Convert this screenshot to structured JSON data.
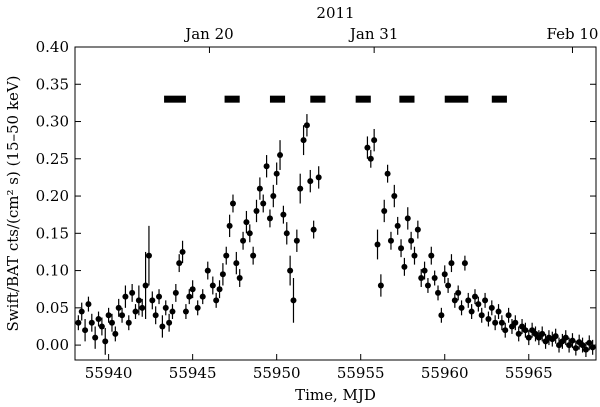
{
  "chart_data": {
    "type": "scatter",
    "xlabel": "Time, MJD",
    "ylabel": "Swift/BAT cts/(cm² s) (15–50 keV)",
    "xlim": [
      55938,
      55969
    ],
    "ylim": [
      -0.02,
      0.4
    ],
    "xticks": [
      55940,
      55945,
      55950,
      55955,
      55960,
      55965
    ],
    "yticks": [
      0.0,
      0.05,
      0.1,
      0.15,
      0.2,
      0.25,
      0.3,
      0.35,
      0.4
    ],
    "top_axis": {
      "title": "2011",
      "ticks": [
        {
          "label": "Jan 20",
          "x": 55946.0
        },
        {
          "label": "Jan 31",
          "x": 55955.8
        },
        {
          "label": "Feb 10",
          "x": 55967.6
        }
      ]
    },
    "bars": {
      "y": 0.33,
      "segments": [
        [
          55943.3,
          55944.6
        ],
        [
          55946.9,
          55947.8
        ],
        [
          55949.6,
          55950.5
        ],
        [
          55952.0,
          55952.9
        ],
        [
          55954.7,
          55955.6
        ],
        [
          55957.3,
          55958.2
        ],
        [
          55960.0,
          55961.4
        ],
        [
          55962.8,
          55963.7
        ]
      ]
    },
    "points": [
      [
        55938.2,
        0.03,
        0.01
      ],
      [
        55938.4,
        0.045,
        0.012
      ],
      [
        55938.6,
        0.02,
        0.015
      ],
      [
        55938.8,
        0.055,
        0.01
      ],
      [
        55939.0,
        0.03,
        0.012
      ],
      [
        55939.2,
        0.01,
        0.015
      ],
      [
        55939.4,
        0.035,
        0.01
      ],
      [
        55939.6,
        0.025,
        0.012
      ],
      [
        55939.8,
        0.005,
        0.018
      ],
      [
        55940.0,
        0.04,
        0.01
      ],
      [
        55940.2,
        0.03,
        0.012
      ],
      [
        55940.4,
        0.015,
        0.01
      ],
      [
        55940.6,
        0.05,
        0.012
      ],
      [
        55940.8,
        0.04,
        0.01
      ],
      [
        55941.0,
        0.065,
        0.015
      ],
      [
        55941.2,
        0.03,
        0.01
      ],
      [
        55941.4,
        0.07,
        0.012
      ],
      [
        55941.6,
        0.045,
        0.01
      ],
      [
        55941.8,
        0.06,
        0.02
      ],
      [
        55942.0,
        0.05,
        0.012
      ],
      [
        55942.2,
        0.08,
        0.045
      ],
      [
        55942.4,
        0.12,
        0.04
      ],
      [
        55942.6,
        0.06,
        0.012
      ],
      [
        55942.8,
        0.04,
        0.012
      ],
      [
        55943.0,
        0.065,
        0.01
      ],
      [
        55943.2,
        0.025,
        0.015
      ],
      [
        55943.4,
        0.05,
        0.01
      ],
      [
        55943.6,
        0.03,
        0.012
      ],
      [
        55943.8,
        0.045,
        0.01
      ],
      [
        55944.0,
        0.07,
        0.012
      ],
      [
        55944.2,
        0.11,
        0.012
      ],
      [
        55944.4,
        0.125,
        0.015
      ],
      [
        55944.6,
        0.045,
        0.01
      ],
      [
        55944.8,
        0.065,
        0.01
      ],
      [
        55945.0,
        0.075,
        0.012
      ],
      [
        55945.3,
        0.05,
        0.01
      ],
      [
        55945.6,
        0.065,
        0.01
      ],
      [
        55945.9,
        0.1,
        0.012
      ],
      [
        55946.2,
        0.08,
        0.012
      ],
      [
        55946.4,
        0.06,
        0.01
      ],
      [
        55946.6,
        0.075,
        0.012
      ],
      [
        55946.8,
        0.095,
        0.015
      ],
      [
        55947.0,
        0.12,
        0.012
      ],
      [
        55947.2,
        0.16,
        0.015
      ],
      [
        55947.4,
        0.19,
        0.012
      ],
      [
        55947.6,
        0.11,
        0.015
      ],
      [
        55947.8,
        0.09,
        0.012
      ],
      [
        55948.0,
        0.14,
        0.012
      ],
      [
        55948.2,
        0.165,
        0.015
      ],
      [
        55948.4,
        0.15,
        0.012
      ],
      [
        55948.6,
        0.12,
        0.012
      ],
      [
        55948.8,
        0.18,
        0.015
      ],
      [
        55949.0,
        0.21,
        0.015
      ],
      [
        55949.2,
        0.19,
        0.012
      ],
      [
        55949.4,
        0.24,
        0.015
      ],
      [
        55949.6,
        0.17,
        0.012
      ],
      [
        55949.8,
        0.2,
        0.015
      ],
      [
        55950.0,
        0.23,
        0.015
      ],
      [
        55950.2,
        0.255,
        0.02
      ],
      [
        55950.4,
        0.175,
        0.012
      ],
      [
        55950.6,
        0.15,
        0.015
      ],
      [
        55950.8,
        0.1,
        0.02
      ],
      [
        55951.0,
        0.06,
        0.03
      ],
      [
        55951.2,
        0.14,
        0.015
      ],
      [
        55951.4,
        0.21,
        0.02
      ],
      [
        55951.6,
        0.275,
        0.02
      ],
      [
        55951.8,
        0.295,
        0.015
      ],
      [
        55952.0,
        0.22,
        0.015
      ],
      [
        55952.2,
        0.155,
        0.012
      ],
      [
        55952.5,
        0.225,
        0.015
      ],
      [
        55955.4,
        0.265,
        0.015
      ],
      [
        55955.6,
        0.25,
        0.012
      ],
      [
        55955.8,
        0.275,
        0.015
      ],
      [
        55956.0,
        0.135,
        0.02
      ],
      [
        55956.2,
        0.08,
        0.015
      ],
      [
        55956.4,
        0.18,
        0.015
      ],
      [
        55956.6,
        0.23,
        0.012
      ],
      [
        55956.8,
        0.14,
        0.012
      ],
      [
        55957.0,
        0.2,
        0.015
      ],
      [
        55957.2,
        0.16,
        0.012
      ],
      [
        55957.4,
        0.13,
        0.012
      ],
      [
        55957.6,
        0.105,
        0.012
      ],
      [
        55957.8,
        0.17,
        0.015
      ],
      [
        55958.0,
        0.14,
        0.012
      ],
      [
        55958.2,
        0.12,
        0.012
      ],
      [
        55958.4,
        0.155,
        0.012
      ],
      [
        55958.6,
        0.09,
        0.012
      ],
      [
        55958.8,
        0.1,
        0.012
      ],
      [
        55959.0,
        0.08,
        0.01
      ],
      [
        55959.2,
        0.12,
        0.012
      ],
      [
        55959.4,
        0.09,
        0.01
      ],
      [
        55959.6,
        0.07,
        0.01
      ],
      [
        55959.8,
        0.04,
        0.01
      ],
      [
        55960.0,
        0.095,
        0.012
      ],
      [
        55960.2,
        0.08,
        0.01
      ],
      [
        55960.4,
        0.11,
        0.012
      ],
      [
        55960.6,
        0.06,
        0.01
      ],
      [
        55960.8,
        0.07,
        0.01
      ],
      [
        55961.0,
        0.05,
        0.01
      ],
      [
        55961.2,
        0.11,
        0.01
      ],
      [
        55961.4,
        0.06,
        0.01
      ],
      [
        55961.6,
        0.045,
        0.01
      ],
      [
        55961.8,
        0.065,
        0.01
      ],
      [
        55962.0,
        0.055,
        0.01
      ],
      [
        55962.2,
        0.04,
        0.01
      ],
      [
        55962.4,
        0.06,
        0.01
      ],
      [
        55962.6,
        0.035,
        0.01
      ],
      [
        55962.8,
        0.05,
        0.01
      ],
      [
        55963.0,
        0.03,
        0.01
      ],
      [
        55963.2,
        0.045,
        0.01
      ],
      [
        55963.4,
        0.03,
        0.01
      ],
      [
        55963.6,
        0.02,
        0.01
      ],
      [
        55963.8,
        0.04,
        0.01
      ],
      [
        55964.0,
        0.025,
        0.01
      ],
      [
        55964.2,
        0.03,
        0.01
      ],
      [
        55964.4,
        0.015,
        0.01
      ],
      [
        55964.6,
        0.025,
        0.01
      ],
      [
        55964.8,
        0.02,
        0.01
      ],
      [
        55965.0,
        0.01,
        0.01
      ],
      [
        55965.2,
        0.02,
        0.01
      ],
      [
        55965.4,
        0.015,
        0.01
      ],
      [
        55965.6,
        0.01,
        0.01
      ],
      [
        55965.8,
        0.015,
        0.01
      ],
      [
        55966.0,
        0.005,
        0.01
      ],
      [
        55966.2,
        0.01,
        0.01
      ],
      [
        55966.4,
        0.008,
        0.01
      ],
      [
        55966.6,
        0.012,
        0.01
      ],
      [
        55966.8,
        0.0,
        0.01
      ],
      [
        55967.0,
        0.005,
        0.01
      ],
      [
        55967.2,
        0.01,
        0.01
      ],
      [
        55967.4,
        0.0,
        0.01
      ],
      [
        55967.6,
        0.006,
        0.01
      ],
      [
        55967.8,
        -0.004,
        0.01
      ],
      [
        55968.0,
        0.004,
        0.01
      ],
      [
        55968.2,
        0.0,
        0.01
      ],
      [
        55968.4,
        -0.006,
        0.01
      ],
      [
        55968.6,
        0.003,
        0.01
      ],
      [
        55968.8,
        -0.003,
        0.01
      ]
    ]
  }
}
